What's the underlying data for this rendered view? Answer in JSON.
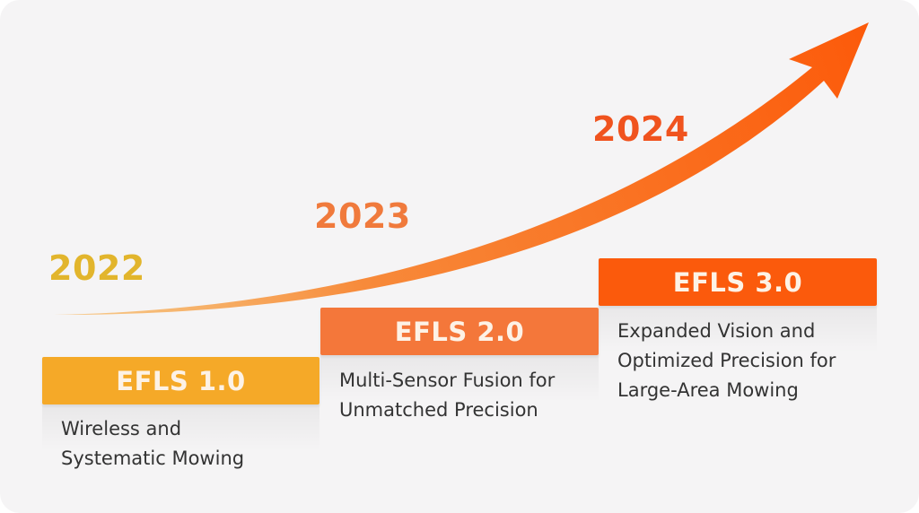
{
  "colors": {
    "background": "#f5f4f5",
    "year_2022": "#e2b52c",
    "year_2023": "#f07a3c",
    "year_2024": "#f0531e",
    "step_1": "#f5a928",
    "step_2": "#f4773a",
    "step_3": "#fb5a0c",
    "arrow_start": "#f7a33a",
    "arrow_end": "#fc5a0a"
  },
  "timeline": [
    {
      "year": "2022",
      "version": "EFLS 1.0",
      "description_lines": [
        "Wireless and",
        "Systematic Mowing"
      ]
    },
    {
      "year": "2023",
      "version": "EFLS 2.0",
      "description_lines": [
        "Multi-Sensor Fusion for",
        "Unmatched Precision"
      ]
    },
    {
      "year": "2024",
      "version": "EFLS 3.0",
      "description_lines": [
        "Expanded Vision and",
        "Optimized Precision for",
        "Large-Area Mowing"
      ]
    }
  ]
}
